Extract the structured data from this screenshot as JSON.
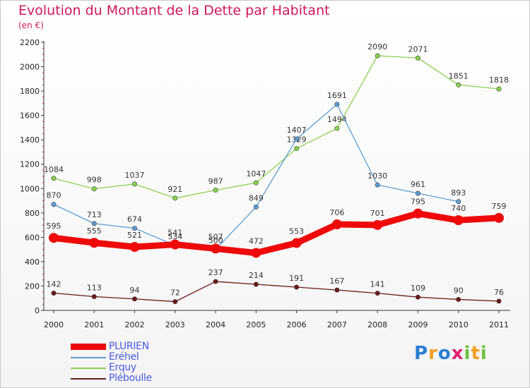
{
  "chart_data": {
    "type": "line",
    "title": "Evolution du Montant de la Dette par Habitant",
    "subtitle": "(en €)",
    "x": [
      "2000",
      "2001",
      "2002",
      "2003",
      "2004",
      "2005",
      "2006",
      "2007",
      "2008",
      "2009",
      "2010",
      "2011"
    ],
    "ylim": [
      0,
      2200
    ],
    "yticks": [
      0,
      200,
      400,
      600,
      800,
      1000,
      1200,
      1400,
      1600,
      1800,
      2000,
      2200
    ],
    "grid": false,
    "legend_position": "bottom-left",
    "series": [
      {
        "name": "Erquy",
        "color": "#88d24c",
        "values": [
          1084,
          998,
          1037,
          921,
          987,
          1047,
          1329,
          1494,
          2090,
          2071,
          1851,
          1818
        ]
      },
      {
        "name": "Eréhel",
        "color": "#5a9ed4",
        "values": [
          870,
          713,
          674,
          534,
          500,
          849,
          1407,
          1691,
          1030,
          961,
          893,
          null
        ]
      },
      {
        "name": "Pléboulle",
        "color": "#6b1818",
        "values": [
          142,
          113,
          94,
          72,
          237,
          214,
          191,
          167,
          141,
          109,
          90,
          76
        ]
      },
      {
        "name": "PLURIEN",
        "color": "#ee0a0a",
        "values": [
          595,
          555,
          521,
          541,
          507,
          472,
          553,
          706,
          701,
          795,
          740,
          759
        ]
      }
    ]
  },
  "legend": {
    "items": [
      {
        "label": "PLURIEN",
        "color": "#ee0a0a"
      },
      {
        "label": "Eréhel",
        "color": "#5a9ed4"
      },
      {
        "label": "Erquy",
        "color": "#88d24c"
      },
      {
        "label": "Pléboulle",
        "color": "#6b1818"
      }
    ]
  },
  "logo": {
    "text": "Proxiti"
  }
}
